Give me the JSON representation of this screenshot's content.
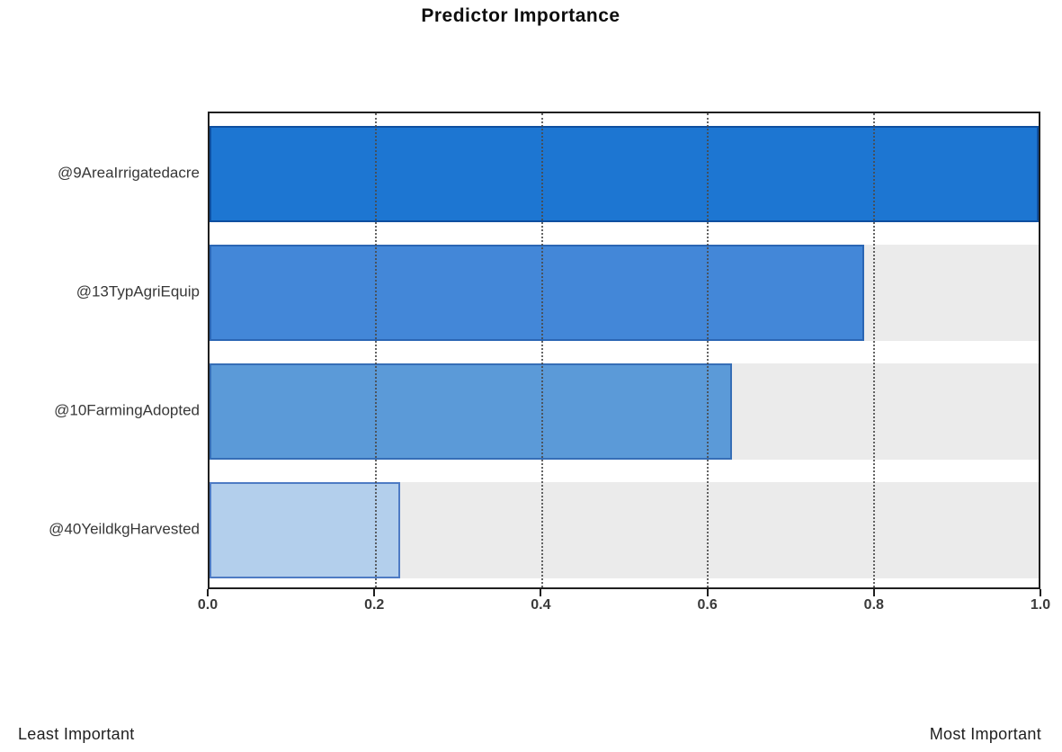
{
  "colors": {
    "plot_bg": "#ffffff",
    "band_bg": "#ebebeb",
    "frame": "#1f1f1f",
    "grid": "#4a4a4a",
    "bars": [
      {
        "fill": "#1d76d2",
        "border": "#0e4fa0"
      },
      {
        "fill": "#4387d8",
        "border": "#2b66b4"
      },
      {
        "fill": "#5b9ad8",
        "border": "#366eb6"
      },
      {
        "fill": "#b3cfec",
        "border": "#4e7bc4"
      }
    ]
  },
  "chart_data": {
    "type": "bar",
    "orientation": "horizontal",
    "title": "Predictor Importance",
    "categories": [
      "@9AreaIrrigatedacre",
      "@13TypAgriEquip",
      "@10FarmingAdopted",
      "@40YeildkgHarvested"
    ],
    "values": [
      1.0,
      0.79,
      0.63,
      0.23
    ],
    "x_ticks": [
      "0.0",
      "0.2",
      "0.4",
      "0.6",
      "0.8",
      "1.0"
    ],
    "xlim": [
      0,
      1
    ],
    "grid": "vertical-dotted",
    "legend": "none",
    "axis_label_left": "Least Important",
    "axis_label_right": "Most Important"
  }
}
